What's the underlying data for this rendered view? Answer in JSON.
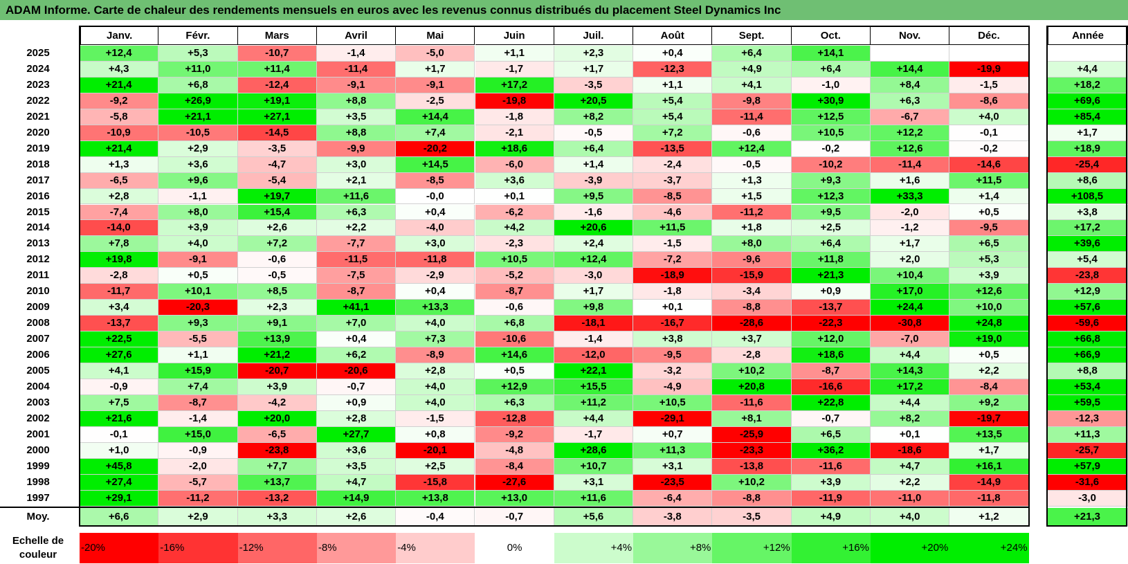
{
  "title": "ADAM Informe. Carte de chaleur des rendements mensuels en euros avec les revenus connus distribués du placement Steel Dynamics Inc",
  "chart_data": {
    "type": "heatmap",
    "title": "ADAM Informe. Carte de chaleur des rendements mensuels en euros avec les revenus connus distribués du placement Steel Dynamics Inc",
    "columns": [
      "Janv.",
      "Févr.",
      "Mars",
      "Avril",
      "Mai",
      "Juin",
      "Juil.",
      "Août",
      "Sept.",
      "Oct.",
      "Nov.",
      "Déc."
    ],
    "year_column_label": "Année",
    "rows": [
      {
        "year": "2025",
        "values": [
          "+12,4",
          "+5,3",
          "-10,7",
          "-1,4",
          "-5,0",
          "+1,1",
          "+2,3",
          "+0,4",
          "+6,4",
          "+14,1",
          "",
          ""
        ],
        "annual": ""
      },
      {
        "year": "2024",
        "values": [
          "+4,3",
          "+11,0",
          "+11,4",
          "-11,4",
          "+1,7",
          "-1,7",
          "+1,7",
          "-12,3",
          "+4,9",
          "+6,4",
          "+14,4",
          "-19,9"
        ],
        "annual": "+4,4"
      },
      {
        "year": "2023",
        "values": [
          "+21,4",
          "+6,8",
          "-12,4",
          "-9,1",
          "-9,1",
          "+17,2",
          "-3,5",
          "+1,1",
          "+4,1",
          "-1,0",
          "+8,4",
          "-1,5"
        ],
        "annual": "+18,2"
      },
      {
        "year": "2022",
        "values": [
          "-9,2",
          "+26,9",
          "+19,1",
          "+8,8",
          "-2,5",
          "-19,8",
          "+20,5",
          "+5,4",
          "-9,8",
          "+30,9",
          "+6,3",
          "-8,6"
        ],
        "annual": "+69,6"
      },
      {
        "year": "2021",
        "values": [
          "-5,8",
          "+21,1",
          "+27,1",
          "+3,5",
          "+14,4",
          "-1,8",
          "+8,2",
          "+5,4",
          "-11,4",
          "+12,5",
          "-6,7",
          "+4,0"
        ],
        "annual": "+85,4"
      },
      {
        "year": "2020",
        "values": [
          "-10,9",
          "-10,5",
          "-14,5",
          "+8,8",
          "+7,4",
          "-2,1",
          "-0,5",
          "+7,2",
          "-0,6",
          "+10,5",
          "+12,2",
          "-0,1"
        ],
        "annual": "+1,7"
      },
      {
        "year": "2019",
        "values": [
          "+21,4",
          "+2,9",
          "-3,5",
          "-9,9",
          "-20,2",
          "+18,6",
          "+6,4",
          "-13,5",
          "+12,4",
          "-0,2",
          "+12,6",
          "-0,2"
        ],
        "annual": "+18,9"
      },
      {
        "year": "2018",
        "values": [
          "+1,3",
          "+3,6",
          "-4,7",
          "+3,0",
          "+14,5",
          "-6,0",
          "+1,4",
          "-2,4",
          "-0,5",
          "-10,2",
          "-11,4",
          "-14,6"
        ],
        "annual": "-25,4"
      },
      {
        "year": "2017",
        "values": [
          "-6,5",
          "+9,6",
          "-5,4",
          "+2,1",
          "-8,5",
          "+3,6",
          "-3,9",
          "-3,7",
          "+1,3",
          "+9,3",
          "+1,6",
          "+11,5"
        ],
        "annual": "+8,6"
      },
      {
        "year": "2016",
        "values": [
          "+2,8",
          "-1,1",
          "+19,7",
          "+11,6",
          "-0,0",
          "+0,1",
          "+9,5",
          "-8,5",
          "+1,5",
          "+12,3",
          "+33,3",
          "+1,4"
        ],
        "annual": "+108,5"
      },
      {
        "year": "2015",
        "values": [
          "-7,4",
          "+8,0",
          "+15,4",
          "+6,3",
          "+0,4",
          "-6,2",
          "-1,6",
          "-4,6",
          "-11,2",
          "+9,5",
          "-2,0",
          "+0,5"
        ],
        "annual": "+3,8"
      },
      {
        "year": "2014",
        "values": [
          "-14,0",
          "+3,9",
          "+2,6",
          "+2,2",
          "-4,0",
          "+4,2",
          "+20,6",
          "+11,5",
          "+1,8",
          "+2,5",
          "-1,2",
          "-9,5"
        ],
        "annual": "+17,2"
      },
      {
        "year": "2013",
        "values": [
          "+7,8",
          "+4,0",
          "+7,2",
          "-7,7",
          "+3,0",
          "-2,3",
          "+2,4",
          "-1,5",
          "+8,0",
          "+6,4",
          "+1,7",
          "+6,5"
        ],
        "annual": "+39,6"
      },
      {
        "year": "2012",
        "values": [
          "+19,8",
          "-9,1",
          "-0,6",
          "-11,5",
          "-11,8",
          "+10,5",
          "+12,4",
          "-7,2",
          "-9,6",
          "+11,8",
          "+2,0",
          "+5,3"
        ],
        "annual": "+5,4"
      },
      {
        "year": "2011",
        "values": [
          "-2,8",
          "+0,5",
          "-0,5",
          "-7,5",
          "-2,9",
          "-5,2",
          "-3,0",
          "-18,9",
          "-15,9",
          "+21,3",
          "+10,4",
          "+3,9"
        ],
        "annual": "-23,8"
      },
      {
        "year": "2010",
        "values": [
          "-11,7",
          "+10,1",
          "+8,5",
          "-8,7",
          "+0,4",
          "-8,7",
          "+1,7",
          "-1,8",
          "-3,4",
          "+0,9",
          "+17,0",
          "+12,6"
        ],
        "annual": "+12,9"
      },
      {
        "year": "2009",
        "values": [
          "+3,4",
          "-20,3",
          "+2,3",
          "+41,1",
          "+13,3",
          "-0,6",
          "+9,8",
          "+0,1",
          "-8,8",
          "-13,7",
          "+24,4",
          "+10,0"
        ],
        "annual": "+57,6"
      },
      {
        "year": "2008",
        "values": [
          "-13,7",
          "+9,3",
          "+9,1",
          "+7,0",
          "+4,0",
          "+6,8",
          "-18,1",
          "-16,7",
          "-28,6",
          "-22,3",
          "-30,8",
          "+24,8"
        ],
        "annual": "-59,6"
      },
      {
        "year": "2007",
        "values": [
          "+22,5",
          "-5,5",
          "+13,9",
          "+0,4",
          "+7,3",
          "-10,6",
          "-1,4",
          "+3,8",
          "+3,7",
          "+12,0",
          "-7,0",
          "+19,0"
        ],
        "annual": "+66,8"
      },
      {
        "year": "2006",
        "values": [
          "+27,6",
          "+1,1",
          "+21,2",
          "+6,2",
          "-8,9",
          "+14,6",
          "-12,0",
          "-9,5",
          "-2,8",
          "+18,6",
          "+4,4",
          "+0,5"
        ],
        "annual": "+66,9"
      },
      {
        "year": "2005",
        "values": [
          "+4,1",
          "+15,9",
          "-20,7",
          "-20,6",
          "+2,8",
          "+0,5",
          "+22,1",
          "-3,2",
          "+10,2",
          "-8,7",
          "+14,3",
          "+2,2"
        ],
        "annual": "+8,8"
      },
      {
        "year": "2004",
        "values": [
          "-0,9",
          "+7,4",
          "+3,9",
          "-0,7",
          "+4,0",
          "+12,9",
          "+15,5",
          "-4,9",
          "+20,8",
          "-16,6",
          "+17,2",
          "-8,4"
        ],
        "annual": "+53,4"
      },
      {
        "year": "2003",
        "values": [
          "+7,5",
          "-8,7",
          "-4,2",
          "+0,9",
          "+4,0",
          "+6,3",
          "+11,2",
          "+10,5",
          "-11,6",
          "+22,8",
          "+4,4",
          "+9,2"
        ],
        "annual": "+59,5"
      },
      {
        "year": "2002",
        "values": [
          "+21,6",
          "-1,4",
          "+20,0",
          "+2,8",
          "-1,5",
          "-12,8",
          "+4,4",
          "-29,1",
          "+8,1",
          "-0,7",
          "+8,2",
          "-19,7"
        ],
        "annual": "-12,3"
      },
      {
        "year": "2001",
        "values": [
          "-0,1",
          "+15,0",
          "-6,5",
          "+27,7",
          "+0,8",
          "-9,2",
          "-1,7",
          "+0,7",
          "-25,9",
          "+6,5",
          "+0,1",
          "+13,5"
        ],
        "annual": "+11,3"
      },
      {
        "year": "2000",
        "values": [
          "+1,0",
          "-0,9",
          "-23,8",
          "+3,6",
          "-20,1",
          "-4,8",
          "+28,6",
          "+11,3",
          "-23,3",
          "+36,2",
          "-18,6",
          "+1,7"
        ],
        "annual": "-25,7"
      },
      {
        "year": "1999",
        "values": [
          "+45,8",
          "-2,0",
          "+7,7",
          "+3,5",
          "+2,5",
          "-8,4",
          "+10,7",
          "+3,1",
          "-13,8",
          "-11,6",
          "+4,7",
          "+16,1"
        ],
        "annual": "+57,9"
      },
      {
        "year": "1998",
        "values": [
          "+27,4",
          "-5,7",
          "+13,7",
          "+4,7",
          "-15,8",
          "-27,6",
          "+3,1",
          "-23,5",
          "+10,2",
          "+3,9",
          "+2,2",
          "-14,9"
        ],
        "annual": "-31,6"
      },
      {
        "year": "1997",
        "values": [
          "+29,1",
          "-11,2",
          "-13,2",
          "+14,9",
          "+13,8",
          "+13,0",
          "+11,6",
          "-6,4",
          "-8,8",
          "-11,9",
          "-11,0",
          "-11,8"
        ],
        "annual": "-3,0"
      }
    ],
    "average": {
      "label": "Moy.",
      "values": [
        "+6,6",
        "+2,9",
        "+3,3",
        "+2,6",
        "-0,4",
        "-0,7",
        "+5,6",
        "-3,8",
        "-3,5",
        "+4,9",
        "+4,0",
        "+1,2"
      ],
      "annual": "+21,3"
    },
    "scale": {
      "label": "Echelle de couleur",
      "stops": [
        {
          "label": "-20%",
          "value": -20,
          "align": "left"
        },
        {
          "label": "-16%",
          "value": -16,
          "align": "left"
        },
        {
          "label": "-12%",
          "value": -12,
          "align": "left"
        },
        {
          "label": "-8%",
          "value": -8,
          "align": "left"
        },
        {
          "label": "-4%",
          "value": -4,
          "align": "left"
        },
        {
          "label": "0%",
          "value": 0,
          "align": "center"
        },
        {
          "label": "+4%",
          "value": 4,
          "align": "right"
        },
        {
          "label": "+8%",
          "value": 8,
          "align": "right"
        },
        {
          "label": "+12%",
          "value": 12,
          "align": "right"
        },
        {
          "label": "+16%",
          "value": 16,
          "align": "right"
        },
        {
          "label": "+20%",
          "value": 20,
          "align": "right"
        },
        {
          "label": "+24%",
          "value": 24,
          "align": "right"
        }
      ]
    },
    "colors": {
      "negative": "#ff0000",
      "neutral": "#ffffff",
      "positive": "#00ee00"
    }
  }
}
